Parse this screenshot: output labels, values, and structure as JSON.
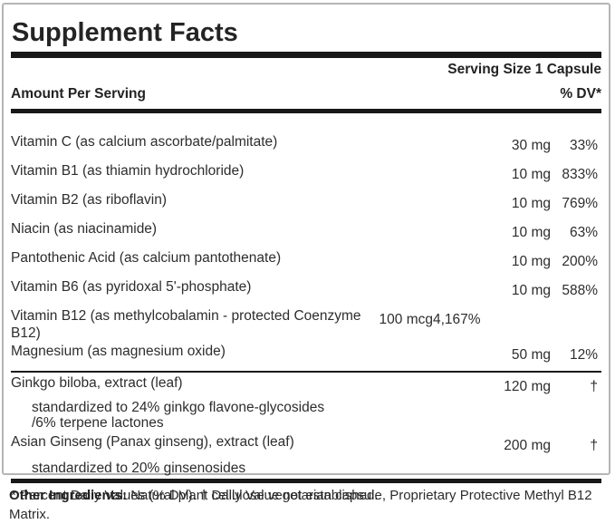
{
  "title": "Supplement Facts",
  "serving_size": "Serving Size 1 Capsule",
  "header": {
    "amount_col": "Amount Per Serving",
    "dv_col": "% DV*"
  },
  "vitamins": [
    {
      "name": "Vitamin C (as calcium ascorbate/palmitate)",
      "amount": "30 mg",
      "dv": "33%"
    },
    {
      "name": "Vitamin B1 (as thiamin hydrochloride)",
      "amount": "10 mg",
      "dv": "833%"
    },
    {
      "name": "Vitamin B2 (as riboflavin)",
      "amount": "10 mg",
      "dv": "769%"
    },
    {
      "name": "Niacin (as niacinamide)",
      "amount": "10 mg",
      "dv": "63%"
    },
    {
      "name": "Pantothenic Acid (as calcium pantothenate)",
      "amount": "10 mg",
      "dv": "200%"
    },
    {
      "name": "Vitamin B6 (as pyridoxal 5'-phosphate)",
      "amount": "10 mg",
      "dv": "588%"
    },
    {
      "name": "Vitamin B12 (as methylcobalamin - protected Coenzyme B12)",
      "amount": "100 mcg",
      "dv": "4,167%"
    },
    {
      "name": "Magnesium (as magnesium oxide)",
      "amount": "50 mg",
      "dv": "12%"
    }
  ],
  "botanicals": [
    {
      "name": "Ginkgo biloba, extract (leaf)",
      "amount": "120 mg",
      "dv": "†",
      "note": "standardized to 24% ginkgo flavone-glycosides /6% terpene lactones"
    },
    {
      "name": "Asian Ginseng (Panax ginseng), extract (leaf)",
      "amount": "200 mg",
      "dv": "†",
      "note": "standardized to 20% ginsenosides"
    }
  ],
  "footnote": "* Percent Daily Values (% DV). † Daily Value not established.",
  "other_ingredients": {
    "label": "Other Ingredients:",
    "text": "Natural plant cellulose vegetarian capsule, Proprietary Protective Methyl B12 Matrix."
  },
  "colors": {
    "background": "#ffffff",
    "border": "#b5b5b5",
    "rule": "#181818",
    "text": "#2d2d2d"
  }
}
